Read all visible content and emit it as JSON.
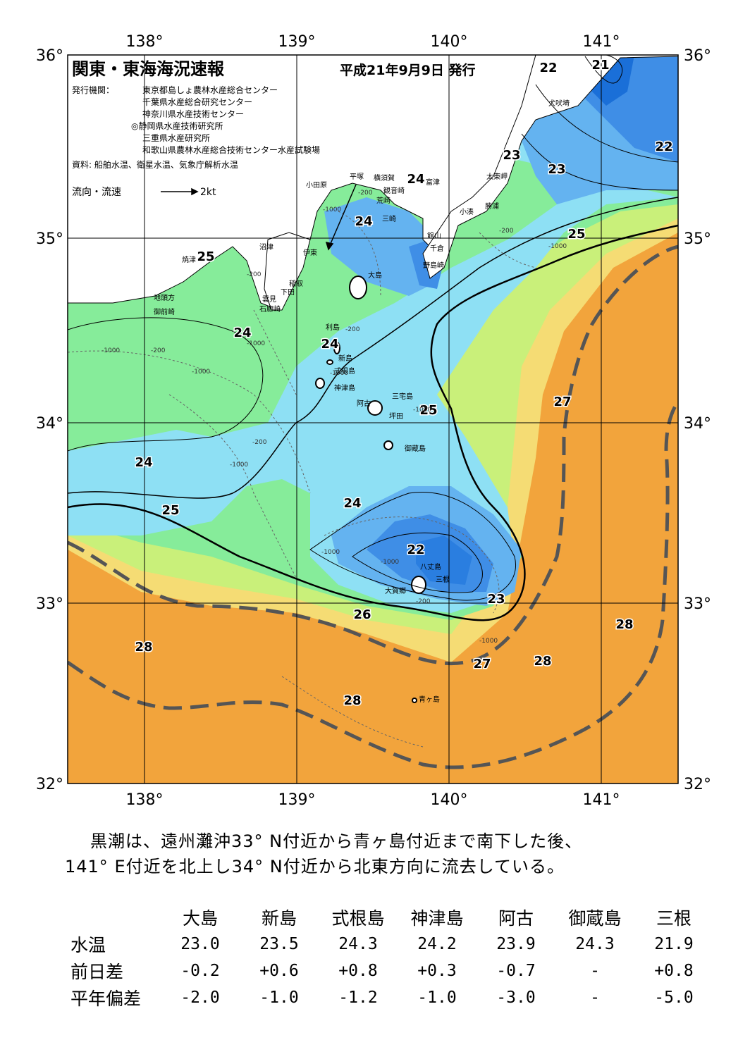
{
  "header": {
    "title": "関東・東海海況速報",
    "issue_date": "平成21年9月9日 発行",
    "issuers_label": "発行機関：",
    "issuers": [
      "東京都島しょ農林水産総合センター",
      "千葉県水産総合研究センター",
      "神奈川県水産技術センター",
      "◎静岡県水産技術研究所",
      "三重県水産研究所",
      "和歌山県農林水産総合技術センター水産試験場"
    ],
    "sources": "資料: 船舶水温、衛星水温、気象庁解析水温",
    "current_legend_label": "流向・流速",
    "current_legend_value": "2kt"
  },
  "axes": {
    "longitudes": [
      "138°",
      "139°",
      "140°",
      "141°"
    ],
    "latitudes": [
      "36°",
      "35°",
      "34°",
      "33°",
      "32°"
    ]
  },
  "isotherm_labels": [
    "21",
    "22",
    "22",
    "23",
    "23",
    "24",
    "25",
    "24",
    "24",
    "25",
    "27",
    "24",
    "25",
    "24",
    "22",
    "23",
    "26",
    "28",
    "27",
    "28",
    "28",
    "28"
  ],
  "depth_labels": [
    "-200",
    "-1000",
    "-200",
    "-1000",
    "-200",
    "-1000",
    "-1000",
    "-200",
    "-1000",
    "-200",
    "-1000",
    "-1000",
    "-200",
    "-1000",
    "-1000",
    "-1000",
    "-1000",
    "-200"
  ],
  "places": {
    "inubozaki": "犬吠埼",
    "taitozaki": "太東岬",
    "katsuura": "勝浦",
    "kominato": "小湊",
    "futtsu": "富津",
    "yokosuka": "横須賀",
    "kannonzaki": "観音崎",
    "arasaki": "荒崎",
    "miura": "三崎",
    "hiratsuka": "平塚",
    "odawara": "小田原",
    "tateyama": "館山",
    "chikura": "千倉",
    "nojimazaki": "野島崎",
    "numazu": "沼津",
    "yaizu": "焼津",
    "ito": "伊東",
    "inatori": "稲取",
    "shimoda": "下田",
    "mikomoto": "雲見",
    "irozaki": "石廊崎",
    "jitokata": "地頭方",
    "omaezaki": "御前崎",
    "oshima": "大島",
    "toshima": "利島",
    "niijima": "新島",
    "shikinejima": "式根島",
    "kozushima": "神津島",
    "miyakejima": "三宅島",
    "ako": "阿古",
    "tsubota": "坪田",
    "mikurajima": "御蔵島",
    "hachijojima": "八丈島",
    "mitsune": "三根",
    "okago": "大賀郷",
    "aogashima": "青ヶ島"
  },
  "summary": [
    "黒潮は、遠州灘沖33° N付近から青ヶ島付近まで南下した後、",
    "141° E付近を北上し34° N付近から北東方向に流去している。"
  ],
  "stats": {
    "stations": [
      "大島",
      "新島",
      "式根島",
      "神津島",
      "阿古",
      "御蔵島",
      "三根"
    ],
    "rows": [
      {
        "label": "水温",
        "values": [
          "23.0",
          "23.5",
          "24.3",
          "24.2",
          "23.9",
          "24.3",
          "21.9"
        ]
      },
      {
        "label": "前日差",
        "values": [
          "-0.2",
          "+0.6",
          "+0.8",
          "+0.3",
          "-0.7",
          "-",
          "+0.8"
        ]
      },
      {
        "label": "平年偏差",
        "values": [
          "-2.0",
          "-1.0",
          "-1.2",
          "-1.0",
          "-3.0",
          "-",
          "-5.0"
        ]
      }
    ]
  },
  "colors": {
    "t21": "#1a6fd8",
    "t22": "#3f8ee6",
    "t23": "#64b3f0",
    "t24": "#8ee0f4",
    "t25": "#86ec9a",
    "t26": "#c9f07a",
    "t27": "#f5dc74",
    "t28": "#f2a43c",
    "land": "#ffffff",
    "kuroshio": "#555555"
  }
}
